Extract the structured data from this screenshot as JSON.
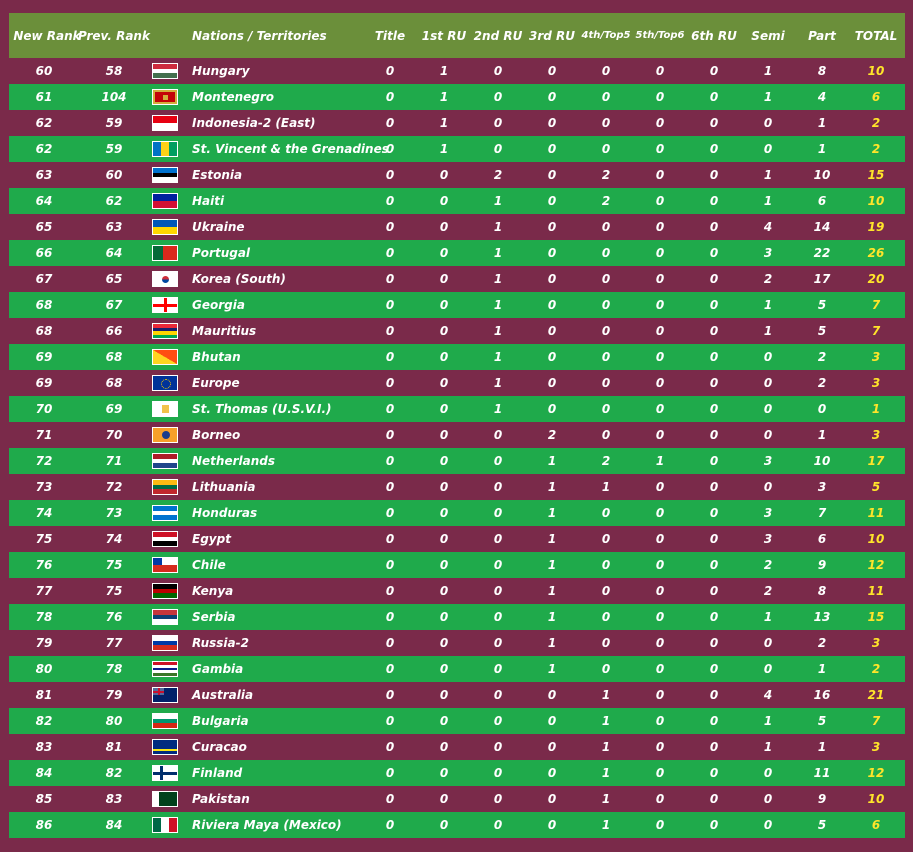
{
  "headers": {
    "new_rank": "New Rank",
    "prev_rank": "Prev. Rank",
    "nation": "Nations / Territories",
    "title": "Title",
    "ru1": "1st RU",
    "ru2": "2nd RU",
    "ru3": "3rd RU",
    "top5": "4th/Top5",
    "top6": "5th/Top6",
    "ru6": "6th RU",
    "semi": "Semi",
    "part": "Part",
    "total": "TOTAL"
  },
  "colors": {
    "background": "#7a2a4a",
    "header": "#6b8f3a",
    "row_green": "#1faa4b",
    "text": "#ffffff",
    "total": "#ffe52a"
  },
  "rows": [
    {
      "new": "60",
      "prev": "58",
      "nation": "Hungary",
      "flag": "hungary-flag",
      "title": "0",
      "ru1": "1",
      "ru2": "0",
      "ru3": "0",
      "top5": "0",
      "top6": "0",
      "ru6": "0",
      "semi": "1",
      "part": "8",
      "total": "10"
    },
    {
      "new": "61",
      "prev": "104",
      "nation": "Montenegro",
      "flag": "montenegro-flag",
      "title": "0",
      "ru1": "1",
      "ru2": "0",
      "ru3": "0",
      "top5": "0",
      "top6": "0",
      "ru6": "0",
      "semi": "1",
      "part": "4",
      "total": "6"
    },
    {
      "new": "62",
      "prev": "59",
      "nation": "Indonesia-2 (East)",
      "flag": "indonesia-flag",
      "title": "0",
      "ru1": "1",
      "ru2": "0",
      "ru3": "0",
      "top5": "0",
      "top6": "0",
      "ru6": "0",
      "semi": "0",
      "part": "1",
      "total": "2"
    },
    {
      "new": "62",
      "prev": "59",
      "nation": "St. Vincent & the Grenadines",
      "flag": "st-vincent-flag",
      "title": "0",
      "ru1": "1",
      "ru2": "0",
      "ru3": "0",
      "top5": "0",
      "top6": "0",
      "ru6": "0",
      "semi": "0",
      "part": "1",
      "total": "2"
    },
    {
      "new": "63",
      "prev": "60",
      "nation": "Estonia",
      "flag": "estonia-flag",
      "title": "0",
      "ru1": "0",
      "ru2": "2",
      "ru3": "0",
      "top5": "2",
      "top6": "0",
      "ru6": "0",
      "semi": "1",
      "part": "10",
      "total": "15"
    },
    {
      "new": "64",
      "prev": "62",
      "nation": "Haiti",
      "flag": "haiti-flag",
      "title": "0",
      "ru1": "0",
      "ru2": "1",
      "ru3": "0",
      "top5": "2",
      "top6": "0",
      "ru6": "0",
      "semi": "1",
      "part": "6",
      "total": "10"
    },
    {
      "new": "65",
      "prev": "63",
      "nation": "Ukraine",
      "flag": "ukraine-flag",
      "title": "0",
      "ru1": "0",
      "ru2": "1",
      "ru3": "0",
      "top5": "0",
      "top6": "0",
      "ru6": "0",
      "semi": "4",
      "part": "14",
      "total": "19"
    },
    {
      "new": "66",
      "prev": "64",
      "nation": "Portugal",
      "flag": "portugal-flag",
      "title": "0",
      "ru1": "0",
      "ru2": "1",
      "ru3": "0",
      "top5": "0",
      "top6": "0",
      "ru6": "0",
      "semi": "3",
      "part": "22",
      "total": "26"
    },
    {
      "new": "67",
      "prev": "65",
      "nation": "Korea (South)",
      "flag": "south-korea-flag",
      "title": "0",
      "ru1": "0",
      "ru2": "1",
      "ru3": "0",
      "top5": "0",
      "top6": "0",
      "ru6": "0",
      "semi": "2",
      "part": "17",
      "total": "20"
    },
    {
      "new": "68",
      "prev": "67",
      "nation": "Georgia",
      "flag": "georgia-flag",
      "title": "0",
      "ru1": "0",
      "ru2": "1",
      "ru3": "0",
      "top5": "0",
      "top6": "0",
      "ru6": "0",
      "semi": "1",
      "part": "5",
      "total": "7"
    },
    {
      "new": "68",
      "prev": "66",
      "nation": "Mauritius",
      "flag": "mauritius-flag",
      "title": "0",
      "ru1": "0",
      "ru2": "1",
      "ru3": "0",
      "top5": "0",
      "top6": "0",
      "ru6": "0",
      "semi": "1",
      "part": "5",
      "total": "7"
    },
    {
      "new": "69",
      "prev": "68",
      "nation": "Bhutan",
      "flag": "bhutan-flag",
      "title": "0",
      "ru1": "0",
      "ru2": "1",
      "ru3": "0",
      "top5": "0",
      "top6": "0",
      "ru6": "0",
      "semi": "0",
      "part": "2",
      "total": "3"
    },
    {
      "new": "69",
      "prev": "68",
      "nation": "Europe",
      "flag": "europe-flag",
      "title": "0",
      "ru1": "0",
      "ru2": "1",
      "ru3": "0",
      "top5": "0",
      "top6": "0",
      "ru6": "0",
      "semi": "0",
      "part": "2",
      "total": "3"
    },
    {
      "new": "70",
      "prev": "69",
      "nation": "St. Thomas (U.S.V.I.)",
      "flag": "usvi-flag",
      "title": "0",
      "ru1": "0",
      "ru2": "1",
      "ru3": "0",
      "top5": "0",
      "top6": "0",
      "ru6": "0",
      "semi": "0",
      "part": "0",
      "total": "1"
    },
    {
      "new": "71",
      "prev": "70",
      "nation": "Borneo",
      "flag": "borneo-flag",
      "title": "0",
      "ru1": "0",
      "ru2": "0",
      "ru3": "2",
      "top5": "0",
      "top6": "0",
      "ru6": "0",
      "semi": "0",
      "part": "1",
      "total": "3"
    },
    {
      "new": "72",
      "prev": "71",
      "nation": "Netherlands",
      "flag": "netherlands-flag",
      "title": "0",
      "ru1": "0",
      "ru2": "0",
      "ru3": "1",
      "top5": "2",
      "top6": "1",
      "ru6": "0",
      "semi": "3",
      "part": "10",
      "total": "17"
    },
    {
      "new": "73",
      "prev": "72",
      "nation": "Lithuania",
      "flag": "lithuania-flag",
      "title": "0",
      "ru1": "0",
      "ru2": "0",
      "ru3": "1",
      "top5": "1",
      "top6": "0",
      "ru6": "0",
      "semi": "0",
      "part": "3",
      "total": "5"
    },
    {
      "new": "74",
      "prev": "73",
      "nation": "Honduras",
      "flag": "honduras-flag",
      "title": "0",
      "ru1": "0",
      "ru2": "0",
      "ru3": "1",
      "top5": "0",
      "top6": "0",
      "ru6": "0",
      "semi": "3",
      "part": "7",
      "total": "11"
    },
    {
      "new": "75",
      "prev": "74",
      "nation": "Egypt",
      "flag": "egypt-flag",
      "title": "0",
      "ru1": "0",
      "ru2": "0",
      "ru3": "1",
      "top5": "0",
      "top6": "0",
      "ru6": "0",
      "semi": "3",
      "part": "6",
      "total": "10"
    },
    {
      "new": "76",
      "prev": "75",
      "nation": "Chile",
      "flag": "chile-flag",
      "title": "0",
      "ru1": "0",
      "ru2": "0",
      "ru3": "1",
      "top5": "0",
      "top6": "0",
      "ru6": "0",
      "semi": "2",
      "part": "9",
      "total": "12"
    },
    {
      "new": "77",
      "prev": "75",
      "nation": "Kenya",
      "flag": "kenya-flag",
      "title": "0",
      "ru1": "0",
      "ru2": "0",
      "ru3": "1",
      "top5": "0",
      "top6": "0",
      "ru6": "0",
      "semi": "2",
      "part": "8",
      "total": "11"
    },
    {
      "new": "78",
      "prev": "76",
      "nation": "Serbia",
      "flag": "serbia-flag",
      "title": "0",
      "ru1": "0",
      "ru2": "0",
      "ru3": "1",
      "top5": "0",
      "top6": "0",
      "ru6": "0",
      "semi": "1",
      "part": "13",
      "total": "15"
    },
    {
      "new": "79",
      "prev": "77",
      "nation": "Russia-2",
      "flag": "russia-flag",
      "title": "0",
      "ru1": "0",
      "ru2": "0",
      "ru3": "1",
      "top5": "0",
      "top6": "0",
      "ru6": "0",
      "semi": "0",
      "part": "2",
      "total": "3"
    },
    {
      "new": "80",
      "prev": "78",
      "nation": "Gambia",
      "flag": "gambia-flag",
      "title": "0",
      "ru1": "0",
      "ru2": "0",
      "ru3": "1",
      "top5": "0",
      "top6": "0",
      "ru6": "0",
      "semi": "0",
      "part": "1",
      "total": "2"
    },
    {
      "new": "81",
      "prev": "79",
      "nation": "Australia",
      "flag": "australia-flag",
      "title": "0",
      "ru1": "0",
      "ru2": "0",
      "ru3": "0",
      "top5": "1",
      "top6": "0",
      "ru6": "0",
      "semi": "4",
      "part": "16",
      "total": "21"
    },
    {
      "new": "82",
      "prev": "80",
      "nation": "Bulgaria",
      "flag": "bulgaria-flag",
      "title": "0",
      "ru1": "0",
      "ru2": "0",
      "ru3": "0",
      "top5": "1",
      "top6": "0",
      "ru6": "0",
      "semi": "1",
      "part": "5",
      "total": "7"
    },
    {
      "new": "83",
      "prev": "81",
      "nation": "Curacao",
      "flag": "curacao-flag",
      "title": "0",
      "ru1": "0",
      "ru2": "0",
      "ru3": "0",
      "top5": "1",
      "top6": "0",
      "ru6": "0",
      "semi": "1",
      "part": "1",
      "total": "3"
    },
    {
      "new": "84",
      "prev": "82",
      "nation": "Finland",
      "flag": "finland-flag",
      "title": "0",
      "ru1": "0",
      "ru2": "0",
      "ru3": "0",
      "top5": "1",
      "top6": "0",
      "ru6": "0",
      "semi": "0",
      "part": "11",
      "total": "12"
    },
    {
      "new": "85",
      "prev": "83",
      "nation": "Pakistan",
      "flag": "pakistan-flag",
      "title": "0",
      "ru1": "0",
      "ru2": "0",
      "ru3": "0",
      "top5": "1",
      "top6": "0",
      "ru6": "0",
      "semi": "0",
      "part": "9",
      "total": "10"
    },
    {
      "new": "86",
      "prev": "84",
      "nation": "Riviera Maya (Mexico)",
      "flag": "mexico-flag",
      "title": "0",
      "ru1": "0",
      "ru2": "0",
      "ru3": "0",
      "top5": "1",
      "top6": "0",
      "ru6": "0",
      "semi": "0",
      "part": "5",
      "total": "6"
    }
  ]
}
